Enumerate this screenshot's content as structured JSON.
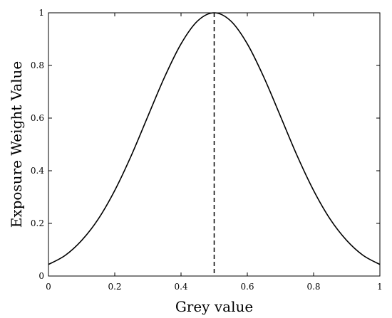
{
  "chart_data": {
    "type": "line",
    "title": "",
    "xlabel": "Grey value",
    "ylabel": "Exposure Weight Value",
    "xlim": [
      0,
      1
    ],
    "ylim": [
      0,
      1
    ],
    "xticks": [
      0,
      0.2,
      0.4,
      0.6,
      0.8,
      1
    ],
    "xtick_labels": [
      "0",
      "0.2",
      "0.4",
      "0.6",
      "0.8",
      "1"
    ],
    "yticks": [
      0,
      0.2,
      0.4,
      0.6,
      0.8,
      1
    ],
    "ytick_labels": [
      "0",
      "0.2",
      "0.4",
      "0.6",
      "0.8",
      "1"
    ],
    "grid": false,
    "legend": "none",
    "series": [
      {
        "style": "solid",
        "color": "#000000",
        "x": [
          0,
          0.05,
          0.1,
          0.15,
          0.2,
          0.25,
          0.3,
          0.35,
          0.4,
          0.45,
          0.5,
          0.55,
          0.6,
          0.65,
          0.7,
          0.75,
          0.8,
          0.85,
          0.9,
          0.95,
          1
        ],
        "y": [
          0.044,
          0.078,
          0.135,
          0.216,
          0.325,
          0.458,
          0.607,
          0.755,
          0.882,
          0.969,
          1.0,
          0.969,
          0.882,
          0.755,
          0.607,
          0.458,
          0.325,
          0.216,
          0.135,
          0.078,
          0.044
        ]
      }
    ],
    "reference_lines": [
      {
        "orientation": "vertical",
        "x": 0.5,
        "style": "dashed",
        "color": "#000000"
      }
    ]
  }
}
